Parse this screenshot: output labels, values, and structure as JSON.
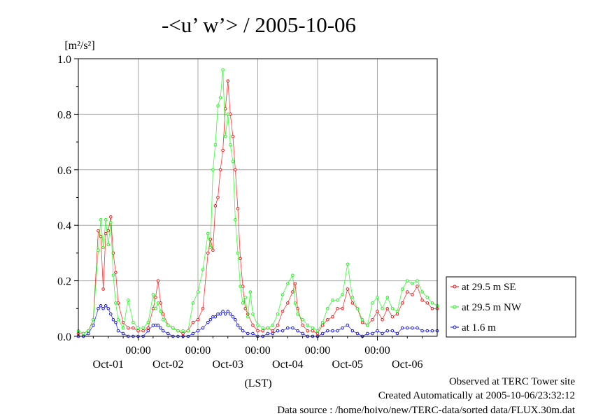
{
  "chart_data": {
    "type": "line",
    "title": "-<u’ w’> / 2005-10-06",
    "yunit": "[m²/s²]",
    "xlabel": "(LST)",
    "ylim": [
      0,
      1.0
    ],
    "yticks": [
      0.0,
      0.2,
      0.4,
      0.6,
      0.8,
      1.0
    ],
    "ytick_labels": [
      "0.0",
      "0.2",
      "0.4",
      "0.6",
      "0.8",
      "1.0"
    ],
    "xlim": [
      0,
      288
    ],
    "x_unit": "half-hour index",
    "xticks_time": [
      {
        "x": 48,
        "label": "00:00"
      },
      {
        "x": 96,
        "label": "00:00"
      },
      {
        "x": 144,
        "label": "00:00"
      },
      {
        "x": 192,
        "label": "00:00"
      },
      {
        "x": 240,
        "label": "00:00"
      }
    ],
    "xticks_date": [
      {
        "x": 24,
        "label": "Oct-01"
      },
      {
        "x": 72,
        "label": "Oct-02"
      },
      {
        "x": 120,
        "label": "Oct-03"
      },
      {
        "x": 168,
        "label": "Oct-04"
      },
      {
        "x": 216,
        "label": "Oct-05"
      },
      {
        "x": 264,
        "label": "Oct-06"
      }
    ],
    "grid": true,
    "legend_position": "right",
    "series": [
      {
        "name": "at 29.5 m SE",
        "color": "#ff0000",
        "points": [
          [
            0,
            0.01
          ],
          [
            4,
            0.01
          ],
          [
            8,
            0.02
          ],
          [
            12,
            0.06
          ],
          [
            16,
            0.38
          ],
          [
            18,
            0.36
          ],
          [
            20,
            0.17
          ],
          [
            22,
            0.37
          ],
          [
            24,
            0.38
          ],
          [
            26,
            0.43
          ],
          [
            28,
            0.3
          ],
          [
            30,
            0.23
          ],
          [
            32,
            0.12
          ],
          [
            36,
            0.05
          ],
          [
            40,
            0.03
          ],
          [
            44,
            0.03
          ],
          [
            48,
            0.02
          ],
          [
            52,
            0.02
          ],
          [
            56,
            0.03
          ],
          [
            60,
            0.1
          ],
          [
            62,
            0.14
          ],
          [
            64,
            0.2
          ],
          [
            66,
            0.12
          ],
          [
            68,
            0.08
          ],
          [
            72,
            0.04
          ],
          [
            76,
            0.03
          ],
          [
            80,
            0.02
          ],
          [
            84,
            0.01
          ],
          [
            88,
            0.02
          ],
          [
            92,
            0.05
          ],
          [
            96,
            0.06
          ],
          [
            100,
            0.1
          ],
          [
            104,
            0.3
          ],
          [
            106,
            0.35
          ],
          [
            108,
            0.31
          ],
          [
            110,
            0.47
          ],
          [
            112,
            0.5
          ],
          [
            114,
            0.6
          ],
          [
            116,
            0.67
          ],
          [
            118,
            0.82
          ],
          [
            120,
            0.92
          ],
          [
            122,
            0.8
          ],
          [
            124,
            0.72
          ],
          [
            126,
            0.6
          ],
          [
            128,
            0.46
          ],
          [
            130,
            0.28
          ],
          [
            132,
            0.18
          ],
          [
            134,
            0.1
          ],
          [
            136,
            0.08
          ],
          [
            140,
            0.04
          ],
          [
            144,
            0.02
          ],
          [
            148,
            0.02
          ],
          [
            152,
            0.03
          ],
          [
            156,
            0.02
          ],
          [
            160,
            0.04
          ],
          [
            164,
            0.09
          ],
          [
            168,
            0.12
          ],
          [
            172,
            0.16
          ],
          [
            174,
            0.19
          ],
          [
            176,
            0.1
          ],
          [
            180,
            0.04
          ],
          [
            184,
            0.02
          ],
          [
            188,
            0.02
          ],
          [
            192,
            0.01
          ],
          [
            196,
            0.04
          ],
          [
            200,
            0.06
          ],
          [
            204,
            0.07
          ],
          [
            208,
            0.1
          ],
          [
            212,
            0.1
          ],
          [
            216,
            0.17
          ],
          [
            220,
            0.12
          ],
          [
            224,
            0.1
          ],
          [
            228,
            0.05
          ],
          [
            232,
            0.04
          ],
          [
            236,
            0.06
          ],
          [
            240,
            0.09
          ],
          [
            244,
            0.06
          ],
          [
            248,
            0.1
          ],
          [
            252,
            0.07
          ],
          [
            256,
            0.08
          ],
          [
            260,
            0.12
          ],
          [
            264,
            0.16
          ],
          [
            268,
            0.15
          ],
          [
            272,
            0.18
          ],
          [
            276,
            0.13
          ],
          [
            280,
            0.12
          ],
          [
            284,
            0.1
          ],
          [
            288,
            0.1
          ]
        ]
      },
      {
        "name": "at 29.5 m NW",
        "color": "#00ff00",
        "points": [
          [
            0,
            0.02
          ],
          [
            4,
            0.01
          ],
          [
            8,
            0.02
          ],
          [
            12,
            0.06
          ],
          [
            16,
            0.31
          ],
          [
            18,
            0.42
          ],
          [
            20,
            0.32
          ],
          [
            22,
            0.42
          ],
          [
            24,
            0.33
          ],
          [
            26,
            0.41
          ],
          [
            28,
            0.22
          ],
          [
            30,
            0.12
          ],
          [
            32,
            0.06
          ],
          [
            36,
            0.03
          ],
          [
            40,
            0.13
          ],
          [
            44,
            0.05
          ],
          [
            48,
            0.03
          ],
          [
            52,
            0.03
          ],
          [
            56,
            0.05
          ],
          [
            60,
            0.15
          ],
          [
            62,
            0.1
          ],
          [
            64,
            0.12
          ],
          [
            66,
            0.09
          ],
          [
            68,
            0.06
          ],
          [
            72,
            0.04
          ],
          [
            76,
            0.03
          ],
          [
            80,
            0.02
          ],
          [
            84,
            0.02
          ],
          [
            88,
            0.02
          ],
          [
            92,
            0.12
          ],
          [
            96,
            0.16
          ],
          [
            100,
            0.24
          ],
          [
            104,
            0.37
          ],
          [
            106,
            0.32
          ],
          [
            108,
            0.6
          ],
          [
            110,
            0.69
          ],
          [
            112,
            0.83
          ],
          [
            114,
            0.86
          ],
          [
            116,
            0.96
          ],
          [
            118,
            0.72
          ],
          [
            120,
            0.8
          ],
          [
            122,
            0.69
          ],
          [
            124,
            0.63
          ],
          [
            126,
            0.42
          ],
          [
            128,
            0.3
          ],
          [
            130,
            0.18
          ],
          [
            132,
            0.12
          ],
          [
            134,
            0.14
          ],
          [
            136,
            0.07
          ],
          [
            138,
            0.16
          ],
          [
            140,
            0.08
          ],
          [
            144,
            0.04
          ],
          [
            148,
            0.03
          ],
          [
            152,
            0.03
          ],
          [
            156,
            0.04
          ],
          [
            160,
            0.08
          ],
          [
            164,
            0.15
          ],
          [
            168,
            0.19
          ],
          [
            172,
            0.22
          ],
          [
            174,
            0.12
          ],
          [
            176,
            0.08
          ],
          [
            180,
            0.06
          ],
          [
            184,
            0.04
          ],
          [
            188,
            0.03
          ],
          [
            192,
            0.02
          ],
          [
            196,
            0.05
          ],
          [
            200,
            0.1
          ],
          [
            204,
            0.13
          ],
          [
            208,
            0.13
          ],
          [
            212,
            0.15
          ],
          [
            216,
            0.26
          ],
          [
            220,
            0.14
          ],
          [
            224,
            0.1
          ],
          [
            228,
            0.06
          ],
          [
            232,
            0.04
          ],
          [
            236,
            0.12
          ],
          [
            240,
            0.14
          ],
          [
            244,
            0.1
          ],
          [
            248,
            0.14
          ],
          [
            252,
            0.1
          ],
          [
            256,
            0.09
          ],
          [
            260,
            0.17
          ],
          [
            264,
            0.2
          ],
          [
            268,
            0.19
          ],
          [
            272,
            0.2
          ],
          [
            276,
            0.16
          ],
          [
            280,
            0.14
          ],
          [
            284,
            0.12
          ],
          [
            288,
            0.11
          ]
        ]
      },
      {
        "name": "at 1.6 m",
        "color": "#0000ff",
        "points": [
          [
            0,
            0.0
          ],
          [
            4,
            0.0
          ],
          [
            8,
            0.01
          ],
          [
            12,
            0.04
          ],
          [
            16,
            0.1
          ],
          [
            18,
            0.11
          ],
          [
            20,
            0.1
          ],
          [
            22,
            0.11
          ],
          [
            24,
            0.1
          ],
          [
            26,
            0.08
          ],
          [
            28,
            0.06
          ],
          [
            30,
            0.05
          ],
          [
            32,
            0.02
          ],
          [
            36,
            0.01
          ],
          [
            40,
            0.0
          ],
          [
            44,
            0.0
          ],
          [
            48,
            0.0
          ],
          [
            52,
            0.0
          ],
          [
            56,
            0.02
          ],
          [
            60,
            0.04
          ],
          [
            62,
            0.04
          ],
          [
            64,
            0.04
          ],
          [
            66,
            0.03
          ],
          [
            68,
            0.02
          ],
          [
            72,
            0.01
          ],
          [
            76,
            0.0
          ],
          [
            80,
            0.0
          ],
          [
            84,
            0.0
          ],
          [
            88,
            0.0
          ],
          [
            92,
            0.01
          ],
          [
            96,
            0.02
          ],
          [
            100,
            0.03
          ],
          [
            104,
            0.05
          ],
          [
            106,
            0.06
          ],
          [
            108,
            0.07
          ],
          [
            110,
            0.07
          ],
          [
            112,
            0.08
          ],
          [
            114,
            0.08
          ],
          [
            116,
            0.09
          ],
          [
            118,
            0.08
          ],
          [
            120,
            0.09
          ],
          [
            122,
            0.08
          ],
          [
            124,
            0.07
          ],
          [
            126,
            0.06
          ],
          [
            128,
            0.04
          ],
          [
            130,
            0.03
          ],
          [
            132,
            0.02
          ],
          [
            136,
            0.01
          ],
          [
            140,
            0.01
          ],
          [
            144,
            0.0
          ],
          [
            148,
            0.0
          ],
          [
            152,
            0.01
          ],
          [
            156,
            0.01
          ],
          [
            160,
            0.02
          ],
          [
            164,
            0.02
          ],
          [
            168,
            0.03
          ],
          [
            172,
            0.03
          ],
          [
            176,
            0.02
          ],
          [
            180,
            0.01
          ],
          [
            184,
            0.0
          ],
          [
            188,
            0.0
          ],
          [
            192,
            0.0
          ],
          [
            196,
            0.01
          ],
          [
            200,
            0.02
          ],
          [
            204,
            0.02
          ],
          [
            208,
            0.02
          ],
          [
            212,
            0.03
          ],
          [
            216,
            0.04
          ],
          [
            220,
            0.02
          ],
          [
            224,
            0.01
          ],
          [
            228,
            0.0
          ],
          [
            232,
            0.01
          ],
          [
            236,
            0.01
          ],
          [
            240,
            0.02
          ],
          [
            244,
            0.01
          ],
          [
            248,
            0.02
          ],
          [
            252,
            0.02
          ],
          [
            256,
            0.01
          ],
          [
            260,
            0.03
          ],
          [
            264,
            0.03
          ],
          [
            268,
            0.03
          ],
          [
            272,
            0.03
          ],
          [
            276,
            0.02
          ],
          [
            280,
            0.02
          ],
          [
            284,
            0.02
          ],
          [
            288,
            0.02
          ]
        ]
      }
    ]
  },
  "footer": {
    "line1": "Observed at TERC Tower site",
    "line2": "Created Automatically at 2005-10-06/23:32:12",
    "line3": "Data source : /home/hoivo/new/TERC-data/sorted  data/FLUX.30m.dat"
  }
}
